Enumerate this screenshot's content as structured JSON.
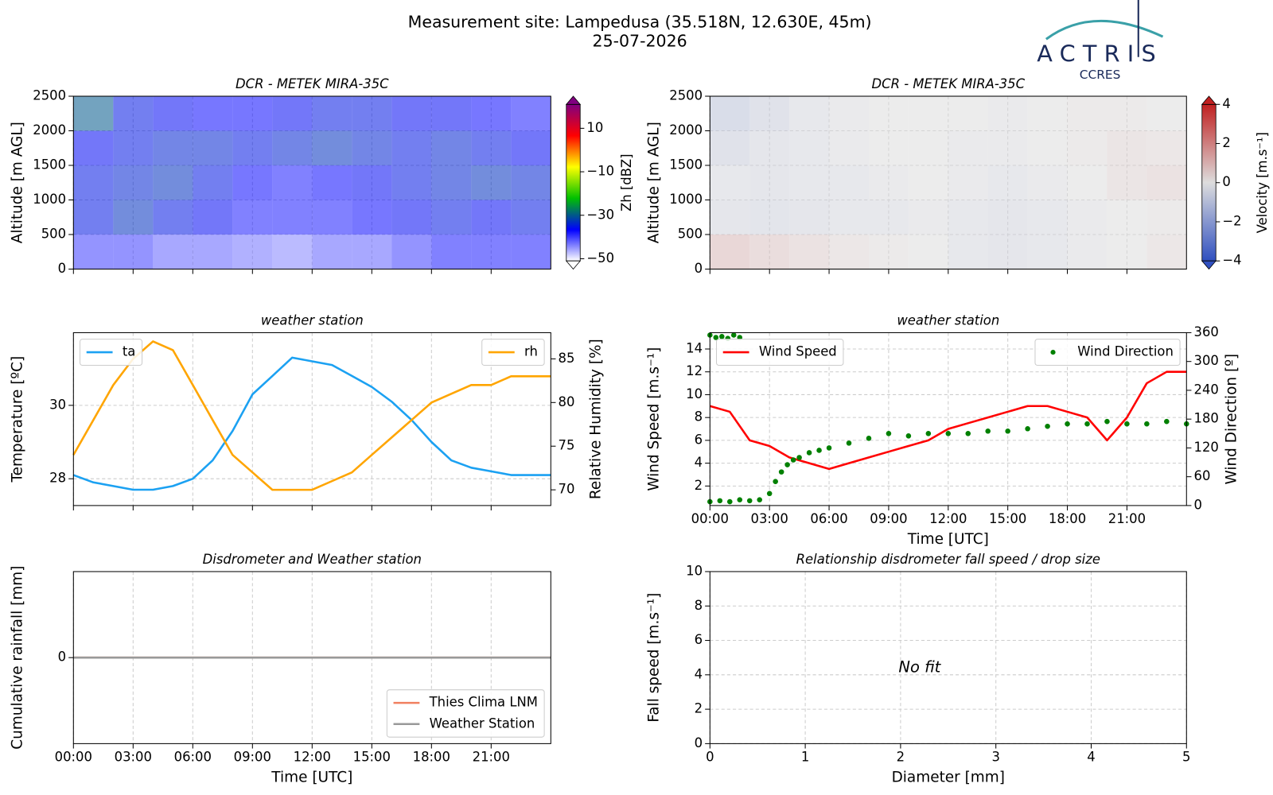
{
  "header": {
    "title": "Measurement site: Lampedusa (35.518N, 12.630E, 45m)",
    "date": "25-07-2026"
  },
  "logo": {
    "name": "ACTRIS",
    "subtitle": "CCRES"
  },
  "chart_data": [
    {
      "type": "heatmap",
      "title": "DCR - METEK MIRA-35C",
      "ylabel": "Altitude [m AGL]",
      "xlim": [
        0,
        24
      ],
      "xticks": [
        0,
        3,
        6,
        9,
        12,
        15,
        18,
        21
      ],
      "xtick_labels": false,
      "ylim": [
        0,
        2500
      ],
      "yticks": [
        0,
        500,
        1000,
        1500,
        2000,
        2500
      ],
      "grid": true,
      "x_bins": [
        0,
        2,
        4,
        6,
        8,
        10,
        12,
        14,
        16,
        18,
        20,
        22,
        24
      ],
      "y_bins": [
        0,
        500,
        1000,
        1500,
        2000,
        2500
      ],
      "z": [
        [
          -40,
          -40,
          -42,
          -42,
          -43,
          -44,
          -42,
          -42,
          -40,
          -38,
          -38,
          -38
        ],
        [
          -35,
          -33,
          -35,
          -36,
          -38,
          -38,
          -38,
          -37,
          -36,
          -35,
          -36,
          -35
        ],
        [
          -35,
          -34,
          -33,
          -35,
          -37,
          -38,
          -37,
          -36,
          -35,
          -34,
          -33,
          -34
        ],
        [
          -36,
          -35,
          -34,
          -34,
          -35,
          -34,
          -33,
          -34,
          -35,
          -34,
          -35,
          -36
        ],
        [
          -30,
          -35,
          -36,
          -37,
          -37,
          -36,
          -35,
          -35,
          -36,
          -36,
          -37,
          -38
        ]
      ],
      "clabel": "Zh [dBZ]",
      "clim": [
        -51,
        21
      ],
      "cticks": [
        {
          "value": -50,
          "label": "−50"
        },
        {
          "value": -30,
          "label": "−30"
        },
        {
          "value": -10,
          "label": "−10"
        },
        10
      ],
      "colormap": [
        "#ffffff",
        "#0000ff",
        "#00c000",
        "#ffff00",
        "#ff0000",
        "#800080"
      ]
    },
    {
      "type": "heatmap",
      "title": "DCR - METEK MIRA-35C",
      "ylabel": "Altitude [m AGL]",
      "xlim": [
        0,
        24
      ],
      "xticks": [
        0,
        3,
        6,
        9,
        12,
        15,
        18,
        21
      ],
      "xtick_labels": false,
      "ylim": [
        0,
        2500
      ],
      "yticks": [
        0,
        500,
        1000,
        1500,
        2000,
        2500
      ],
      "grid": true,
      "x_bins": [
        0,
        2,
        4,
        6,
        8,
        10,
        12,
        14,
        16,
        18,
        20,
        22,
        24
      ],
      "y_bins": [
        0,
        500,
        1000,
        1500,
        2000,
        2500
      ],
      "z": [
        [
          0.8,
          0.6,
          0.4,
          0.2,
          0.1,
          0,
          -0.2,
          -0.3,
          -0.2,
          -0.1,
          0,
          0.2
        ],
        [
          -0.3,
          -0.4,
          -0.3,
          -0.2,
          -0.2,
          -0.1,
          -0.2,
          -0.3,
          -0.2,
          -0.1,
          0,
          0.1
        ],
        [
          -0.2,
          -0.3,
          -0.2,
          -0.2,
          -0.1,
          0,
          -0.1,
          -0.2,
          -0.1,
          0,
          0.3,
          0.4
        ],
        [
          -0.5,
          -0.3,
          -0.2,
          -0.1,
          0,
          0,
          -0.1,
          -0.1,
          0,
          0.1,
          0.3,
          0.2
        ],
        [
          -0.8,
          -0.5,
          -0.2,
          -0.1,
          0,
          0,
          0,
          -0.1,
          0,
          0.1,
          0.1,
          0
        ]
      ],
      "clabel": "Velocity [m.s⁻¹]",
      "clim": [
        -4,
        4
      ],
      "cticks": [
        {
          "value": -4,
          "label": "−4"
        },
        {
          "value": -2,
          "label": "−2"
        },
        0,
        2,
        4
      ],
      "colormap": [
        "#3050c0",
        "#dddddd",
        "#c02020"
      ]
    },
    {
      "type": "line",
      "title": "weather station",
      "ylabel": "Temperature [ºC]",
      "y2label": "Relative Humidity [%]",
      "xlim": [
        0,
        24
      ],
      "xticks": [
        0,
        3,
        6,
        9,
        12,
        15,
        18,
        21
      ],
      "xtick_labels": false,
      "ylim": [
        27.27,
        31.98
      ],
      "yticks": [
        28,
        30
      ],
      "y2lim": [
        68.2,
        88
      ],
      "y2ticks": [
        70,
        75,
        80,
        85
      ],
      "grid": true,
      "x": [
        0,
        1,
        2,
        3,
        4,
        5,
        6,
        7,
        8,
        9,
        10,
        11,
        12,
        13,
        14,
        15,
        16,
        17,
        18,
        19,
        20,
        21,
        22,
        23,
        24
      ],
      "series": [
        {
          "name": "ta",
          "color": "#1ba1f2",
          "legend": "upper left",
          "values": [
            28.1,
            27.9,
            27.8,
            27.7,
            27.7,
            27.8,
            28.0,
            28.5,
            29.3,
            30.3,
            30.8,
            31.3,
            31.2,
            31.1,
            30.8,
            30.5,
            30.1,
            29.6,
            29.0,
            28.5,
            28.3,
            28.2,
            28.1,
            28.1,
            28.1
          ]
        },
        {
          "name": "rh",
          "color": "#ffa500",
          "axis": "y2",
          "legend": "upper right",
          "values": [
            74,
            78,
            82,
            85,
            87,
            86,
            82,
            78,
            74,
            72,
            70,
            70,
            70,
            71,
            72,
            74,
            76,
            78,
            80,
            81,
            82,
            82,
            83,
            83,
            83
          ]
        }
      ]
    },
    {
      "type": "line",
      "title": "weather station",
      "ylabel": "Wind Speed [m.s⁻¹]",
      "y2label": "Wind Direction [º]",
      "xlabel": "Time [UTC]",
      "xlim": [
        0,
        24
      ],
      "xticks": [
        {
          "value": 0,
          "label": "00:00"
        },
        {
          "value": 3,
          "label": "03:00"
        },
        {
          "value": 6,
          "label": "06:00"
        },
        {
          "value": 9,
          "label": "09:00"
        },
        {
          "value": 12,
          "label": "12:00"
        },
        {
          "value": 15,
          "label": "15:00"
        },
        {
          "value": 18,
          "label": "18:00"
        },
        {
          "value": 21,
          "label": "21:00"
        }
      ],
      "ylim": [
        0.29,
        15.43
      ],
      "yticks": [
        2,
        4,
        6,
        8,
        10,
        12,
        14
      ],
      "y2lim": [
        0,
        360
      ],
      "y2ticks": [
        0,
        60,
        120,
        180,
        240,
        300,
        360
      ],
      "grid": true,
      "x": [
        0,
        1,
        2,
        3,
        4,
        5,
        6,
        7,
        8,
        9,
        10,
        11,
        12,
        13,
        14,
        15,
        16,
        17,
        18,
        19,
        20,
        21,
        22,
        23,
        24
      ],
      "series": [
        {
          "name": "Wind Speed",
          "color": "#ff0000",
          "legend": "upper left",
          "values": [
            9,
            8.5,
            6,
            5.5,
            4.5,
            4,
            3.5,
            4,
            4.5,
            5,
            5.5,
            6,
            7,
            7.5,
            8,
            8.5,
            9,
            9,
            8.5,
            8,
            6,
            8,
            11,
            12,
            12
          ]
        },
        {
          "name": "Wind Direction",
          "color": "#008000",
          "axis": "y2",
          "marker": "dot",
          "legend": "upper right",
          "x": [
            0,
            0.3,
            0.6,
            0.9,
            1.2,
            1.5,
            0,
            0.5,
            1,
            1.5,
            2,
            2.5,
            3,
            3.3,
            3.6,
            3.9,
            4.2,
            4.5,
            5,
            5.5,
            6,
            7,
            8,
            9,
            10,
            11,
            12,
            13,
            14,
            15,
            16,
            17,
            18,
            19,
            20,
            21,
            22,
            23,
            24
          ],
          "values": [
            355,
            350,
            352,
            348,
            355,
            350,
            8,
            10,
            8,
            12,
            10,
            12,
            25,
            50,
            70,
            85,
            95,
            100,
            110,
            115,
            120,
            130,
            140,
            150,
            145,
            150,
            150,
            150,
            155,
            155,
            160,
            165,
            170,
            170,
            175,
            170,
            170,
            175,
            170
          ]
        }
      ]
    },
    {
      "type": "line",
      "title": "Disdrometer and Weather station",
      "ylabel": "Cumulative rainfall [mm]",
      "xlabel": "Time [UTC]",
      "xlim": [
        0,
        24
      ],
      "xticks": [
        {
          "value": 0,
          "label": "00:00"
        },
        {
          "value": 3,
          "label": "03:00"
        },
        {
          "value": 6,
          "label": "06:00"
        },
        {
          "value": 9,
          "label": "09:00"
        },
        {
          "value": 12,
          "label": "12:00"
        },
        {
          "value": 15,
          "label": "15:00"
        },
        {
          "value": 18,
          "label": "18:00"
        },
        {
          "value": 21,
          "label": "21:00"
        }
      ],
      "ylim": [
        -1,
        1
      ],
      "yticks": [
        0
      ],
      "grid": true,
      "x": [
        0,
        24
      ],
      "series": [
        {
          "name": "Thies Clima LNM",
          "color": "#f08060",
          "legend": "lower right",
          "values": [
            0,
            0
          ]
        },
        {
          "name": "Weather Station",
          "color": "#999999",
          "legend": "lower right",
          "values": [
            0,
            0
          ]
        }
      ]
    },
    {
      "type": "scatter",
      "title": "Relationship disdrometer fall speed / drop size",
      "ylabel": "Fall speed [m.s⁻¹]",
      "xlabel": "Diameter [mm]",
      "xlim": [
        0,
        5
      ],
      "xticks": [
        0,
        1,
        2,
        3,
        4,
        5
      ],
      "ylim": [
        0,
        10
      ],
      "yticks": [
        0,
        2,
        4,
        6,
        8,
        10
      ],
      "grid": true,
      "annotation": "No fit"
    }
  ]
}
